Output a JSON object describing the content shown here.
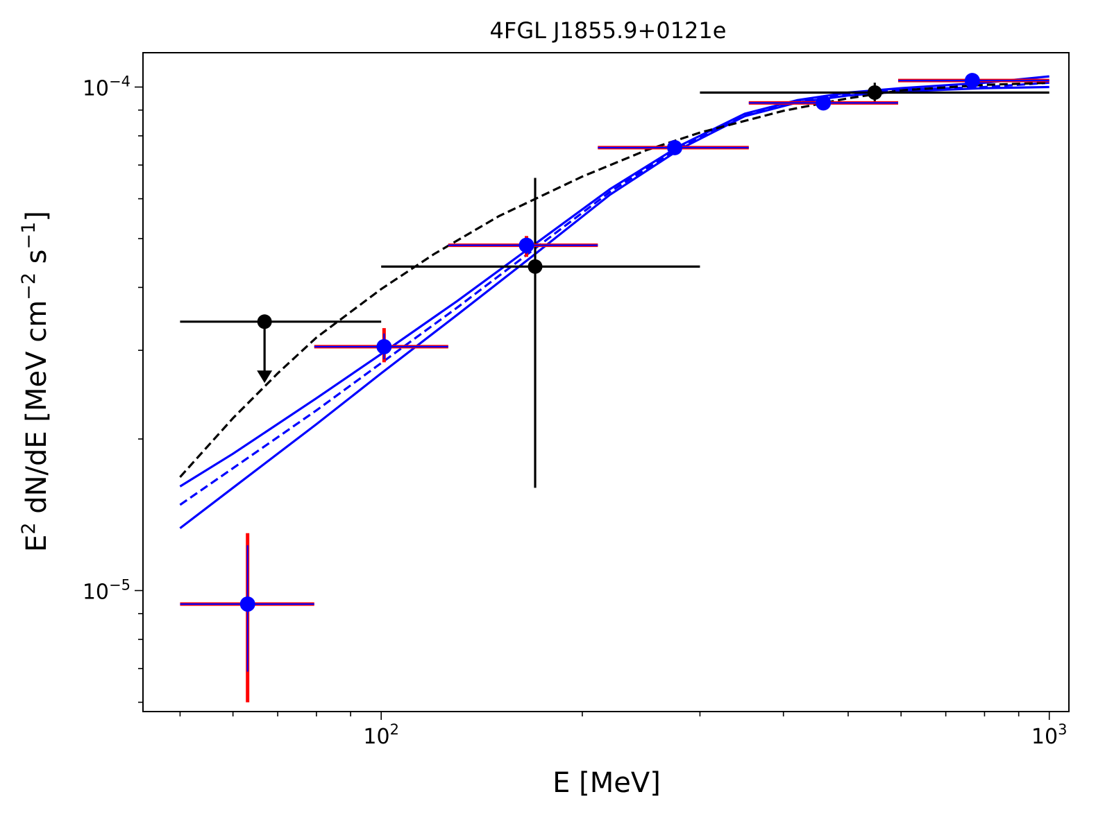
{
  "chart_data": {
    "type": "scatter",
    "title": "4FGL J1855.9+0121e",
    "xlabel": "E [MeV]",
    "ylabel_main": "E",
    "ylabel_sq": "2",
    "ylabel_rest": " dN/dE [MeV cm",
    "ylabel_sup1": "−2",
    "ylabel_mid": " s",
    "ylabel_sup2": "−1",
    "ylabel_end": "]",
    "xscale": "log",
    "yscale": "log",
    "xlim": [
      44,
      1070
    ],
    "ylim": [
      5.75e-06,
      0.000117
    ],
    "x_ticks": [
      {
        "value": 100,
        "base": "10",
        "exp": "2"
      },
      {
        "value": 1000,
        "base": "10",
        "exp": "3"
      }
    ],
    "y_ticks": [
      {
        "value": 1e-05,
        "base": "10",
        "exp": "−5"
      },
      {
        "value": 0.0001,
        "base": "10",
        "exp": "−4"
      }
    ],
    "colors": {
      "blue": "#0000ff",
      "red": "#ff0000",
      "black": "#000000"
    },
    "black_points": [
      {
        "x": 66.9,
        "y": 3.42e-05,
        "xerr": [
          50,
          100
        ],
        "upper_limit": true,
        "ul_to": 2.6e-05
      },
      {
        "x": 170,
        "y": 4.4e-05,
        "yerr": [
          1.6e-05,
          6.6e-05
        ],
        "xerr": [
          100,
          300
        ]
      },
      {
        "x": 548,
        "y": 9.75e-05,
        "yerr": [
          9.3e-05,
          0.000102
        ],
        "xerr": [
          300,
          1000
        ]
      }
    ],
    "blue_points": [
      {
        "x": 63.1,
        "y": 9.4e-06,
        "xerr": [
          50,
          79.4
        ],
        "yerr_stat": [
          6.9e-06,
          1.23e-05
        ],
        "yerr_sys": [
          6e-06,
          1.3e-05
        ]
      },
      {
        "x": 101,
        "y": 3.05e-05,
        "xerr": [
          79.4,
          126
        ],
        "yerr_stat": [
          2.88e-05,
          3.24e-05
        ],
        "yerr_sys": [
          2.84e-05,
          3.32e-05
        ]
      },
      {
        "x": 165,
        "y": 4.85e-05,
        "xerr": [
          126,
          211
        ],
        "yerr_stat": [
          4.66e-05,
          5e-05
        ],
        "yerr_sys": [
          4.6e-05,
          5.06e-05
        ]
      },
      {
        "x": 275,
        "y": 7.58e-05,
        "xerr": [
          211,
          355
        ],
        "yerr_stat": [
          7.45e-05,
          7.72e-05
        ],
        "yerr_sys": [
          7.45e-05,
          7.72e-05
        ]
      },
      {
        "x": 459,
        "y": 9.3e-05,
        "xerr": [
          355,
          594
        ],
        "yerr_stat": [
          9.18e-05,
          9.43e-05
        ],
        "yerr_sys": [
          9.18e-05,
          9.43e-05
        ]
      },
      {
        "x": 767,
        "y": 0.000103,
        "xerr": [
          594,
          1000
        ],
        "yerr_stat": [
          0.000102,
          0.000104
        ],
        "yerr_sys": [
          0.000102,
          0.000104
        ]
      }
    ],
    "model_black_dashed": [
      [
        50,
        1.68e-05
      ],
      [
        60,
        2.2e-05
      ],
      [
        70,
        2.7e-05
      ],
      [
        80,
        3.18e-05
      ],
      [
        100,
        3.97e-05
      ],
      [
        120,
        4.66e-05
      ],
      [
        150,
        5.54e-05
      ],
      [
        200,
        6.64e-05
      ],
      [
        250,
        7.5e-05
      ],
      [
        300,
        8.12e-05
      ],
      [
        400,
        8.97e-05
      ],
      [
        500,
        9.5e-05
      ],
      [
        600,
        9.85e-05
      ],
      [
        800,
        0.000101
      ],
      [
        1000,
        0.000102
      ]
    ],
    "model_blue_mid": [
      [
        50,
        1.48e-05
      ],
      [
        60,
        1.75e-05
      ],
      [
        80,
        2.28e-05
      ],
      [
        100,
        2.83e-05
      ],
      [
        130,
        3.65e-05
      ],
      [
        170,
        4.78e-05
      ],
      [
        220,
        6.19e-05
      ],
      [
        280,
        7.6e-05
      ],
      [
        350,
        8.8e-05
      ],
      [
        420,
        9.37e-05
      ],
      [
        500,
        9.7e-05
      ],
      [
        600,
        9.88e-05
      ],
      [
        800,
        0.0001
      ],
      [
        1000,
        0.000102
      ]
    ],
    "model_blue_upper": [
      [
        50,
        1.61e-05
      ],
      [
        60,
        1.87e-05
      ],
      [
        80,
        2.41e-05
      ],
      [
        100,
        2.95e-05
      ],
      [
        130,
        3.76e-05
      ],
      [
        170,
        4.88e-05
      ],
      [
        220,
        6.27e-05
      ],
      [
        280,
        7.65e-05
      ],
      [
        350,
        8.85e-05
      ],
      [
        420,
        9.42e-05
      ],
      [
        500,
        9.75e-05
      ],
      [
        600,
        9.95e-05
      ],
      [
        800,
        0.000102
      ],
      [
        1000,
        0.000105
      ]
    ],
    "model_blue_lower": [
      [
        50,
        1.33e-05
      ],
      [
        60,
        1.6e-05
      ],
      [
        80,
        2.14e-05
      ],
      [
        100,
        2.7e-05
      ],
      [
        130,
        3.53e-05
      ],
      [
        170,
        4.66e-05
      ],
      [
        220,
        6.11e-05
      ],
      [
        280,
        7.53e-05
      ],
      [
        350,
        8.75e-05
      ],
      [
        420,
        9.32e-05
      ],
      [
        500,
        9.62e-05
      ],
      [
        600,
        9.8e-05
      ],
      [
        800,
        9.95e-05
      ],
      [
        1000,
        0.0001
      ]
    ]
  }
}
